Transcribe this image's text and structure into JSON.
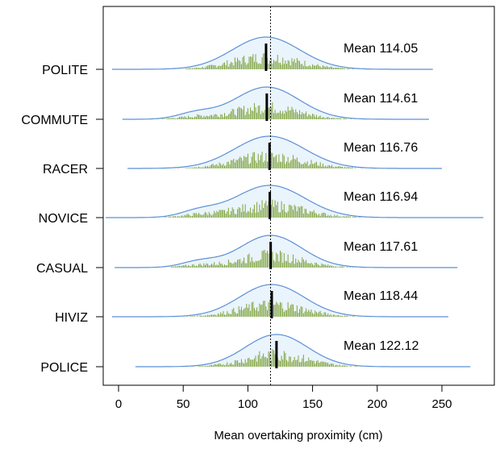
{
  "chart_data": {
    "type": "ridgeline-density",
    "xlabel": "Mean overtaking proximity (cm)",
    "xlim": [
      -10,
      285
    ],
    "xticks": [
      0,
      50,
      100,
      150,
      200,
      250
    ],
    "reference_line": 117.5,
    "colors": {
      "density_fill": "#eaf4fc",
      "density_line": "#5b8fd6",
      "histogram_bar": "#7fa33a",
      "mean_bar": "#000000",
      "reference_line": "#000000"
    },
    "series": [
      {
        "name": "POLITE",
        "mean": 114.05,
        "mean_label": "Mean 114.05",
        "range": [
          -5,
          243
        ],
        "sd": 26,
        "skew": 0
      },
      {
        "name": "COMMUTE",
        "mean": 114.61,
        "mean_label": "Mean 114.61",
        "range": [
          3,
          240
        ],
        "sd": 25,
        "skew": 1
      },
      {
        "name": "RACER",
        "mean": 116.76,
        "mean_label": "Mean 116.76",
        "range": [
          7,
          250
        ],
        "sd": 27,
        "skew": 0
      },
      {
        "name": "NOVICE",
        "mean": 116.94,
        "mean_label": "Mean 116.94",
        "range": [
          -10,
          282
        ],
        "sd": 27,
        "skew": 1
      },
      {
        "name": "CASUAL",
        "mean": 117.61,
        "mean_label": "Mean 117.61",
        "range": [
          -3,
          262
        ],
        "sd": 24,
        "skew": 1
      },
      {
        "name": "HIVIZ",
        "mean": 118.44,
        "mean_label": "Mean 118.44",
        "range": [
          -5,
          255
        ],
        "sd": 25,
        "skew": 0
      },
      {
        "name": "POLICE",
        "mean": 122.12,
        "mean_label": "Mean 122.12",
        "range": [
          13,
          272
        ],
        "sd": 24,
        "skew": 0
      }
    ]
  }
}
